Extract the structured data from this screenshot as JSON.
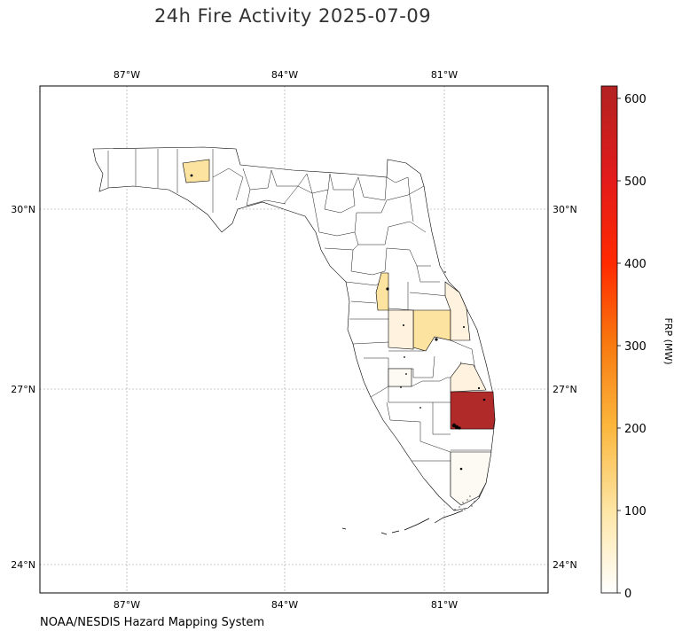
{
  "title": "24h Fire Activity 2025-07-09",
  "credit": "NOAA/NESDIS Hazard Mapping System",
  "map": {
    "lon_ticks": [
      "87°W",
      "84°W",
      "81°W"
    ],
    "lat_ticks": [
      "30°N",
      "27°N",
      "24°N"
    ],
    "gridlines": true
  },
  "colorbar": {
    "label": "FRP (MW)",
    "ticks": [
      "0",
      "100",
      "200",
      "300",
      "400",
      "500",
      "600"
    ],
    "range": [
      0,
      615
    ],
    "colors": [
      "#ffffff",
      "#fde6a6",
      "#fbb63c",
      "#f87a10",
      "#ff2a00",
      "#e21b1b",
      "#b22222"
    ]
  },
  "colors": {
    "highest": "#b02a2a",
    "medium": "#fde3a0",
    "low": "#fff3e0",
    "very_low": "#fdfaf4",
    "outline": "#000000",
    "grid": "#9e9e9e"
  }
}
